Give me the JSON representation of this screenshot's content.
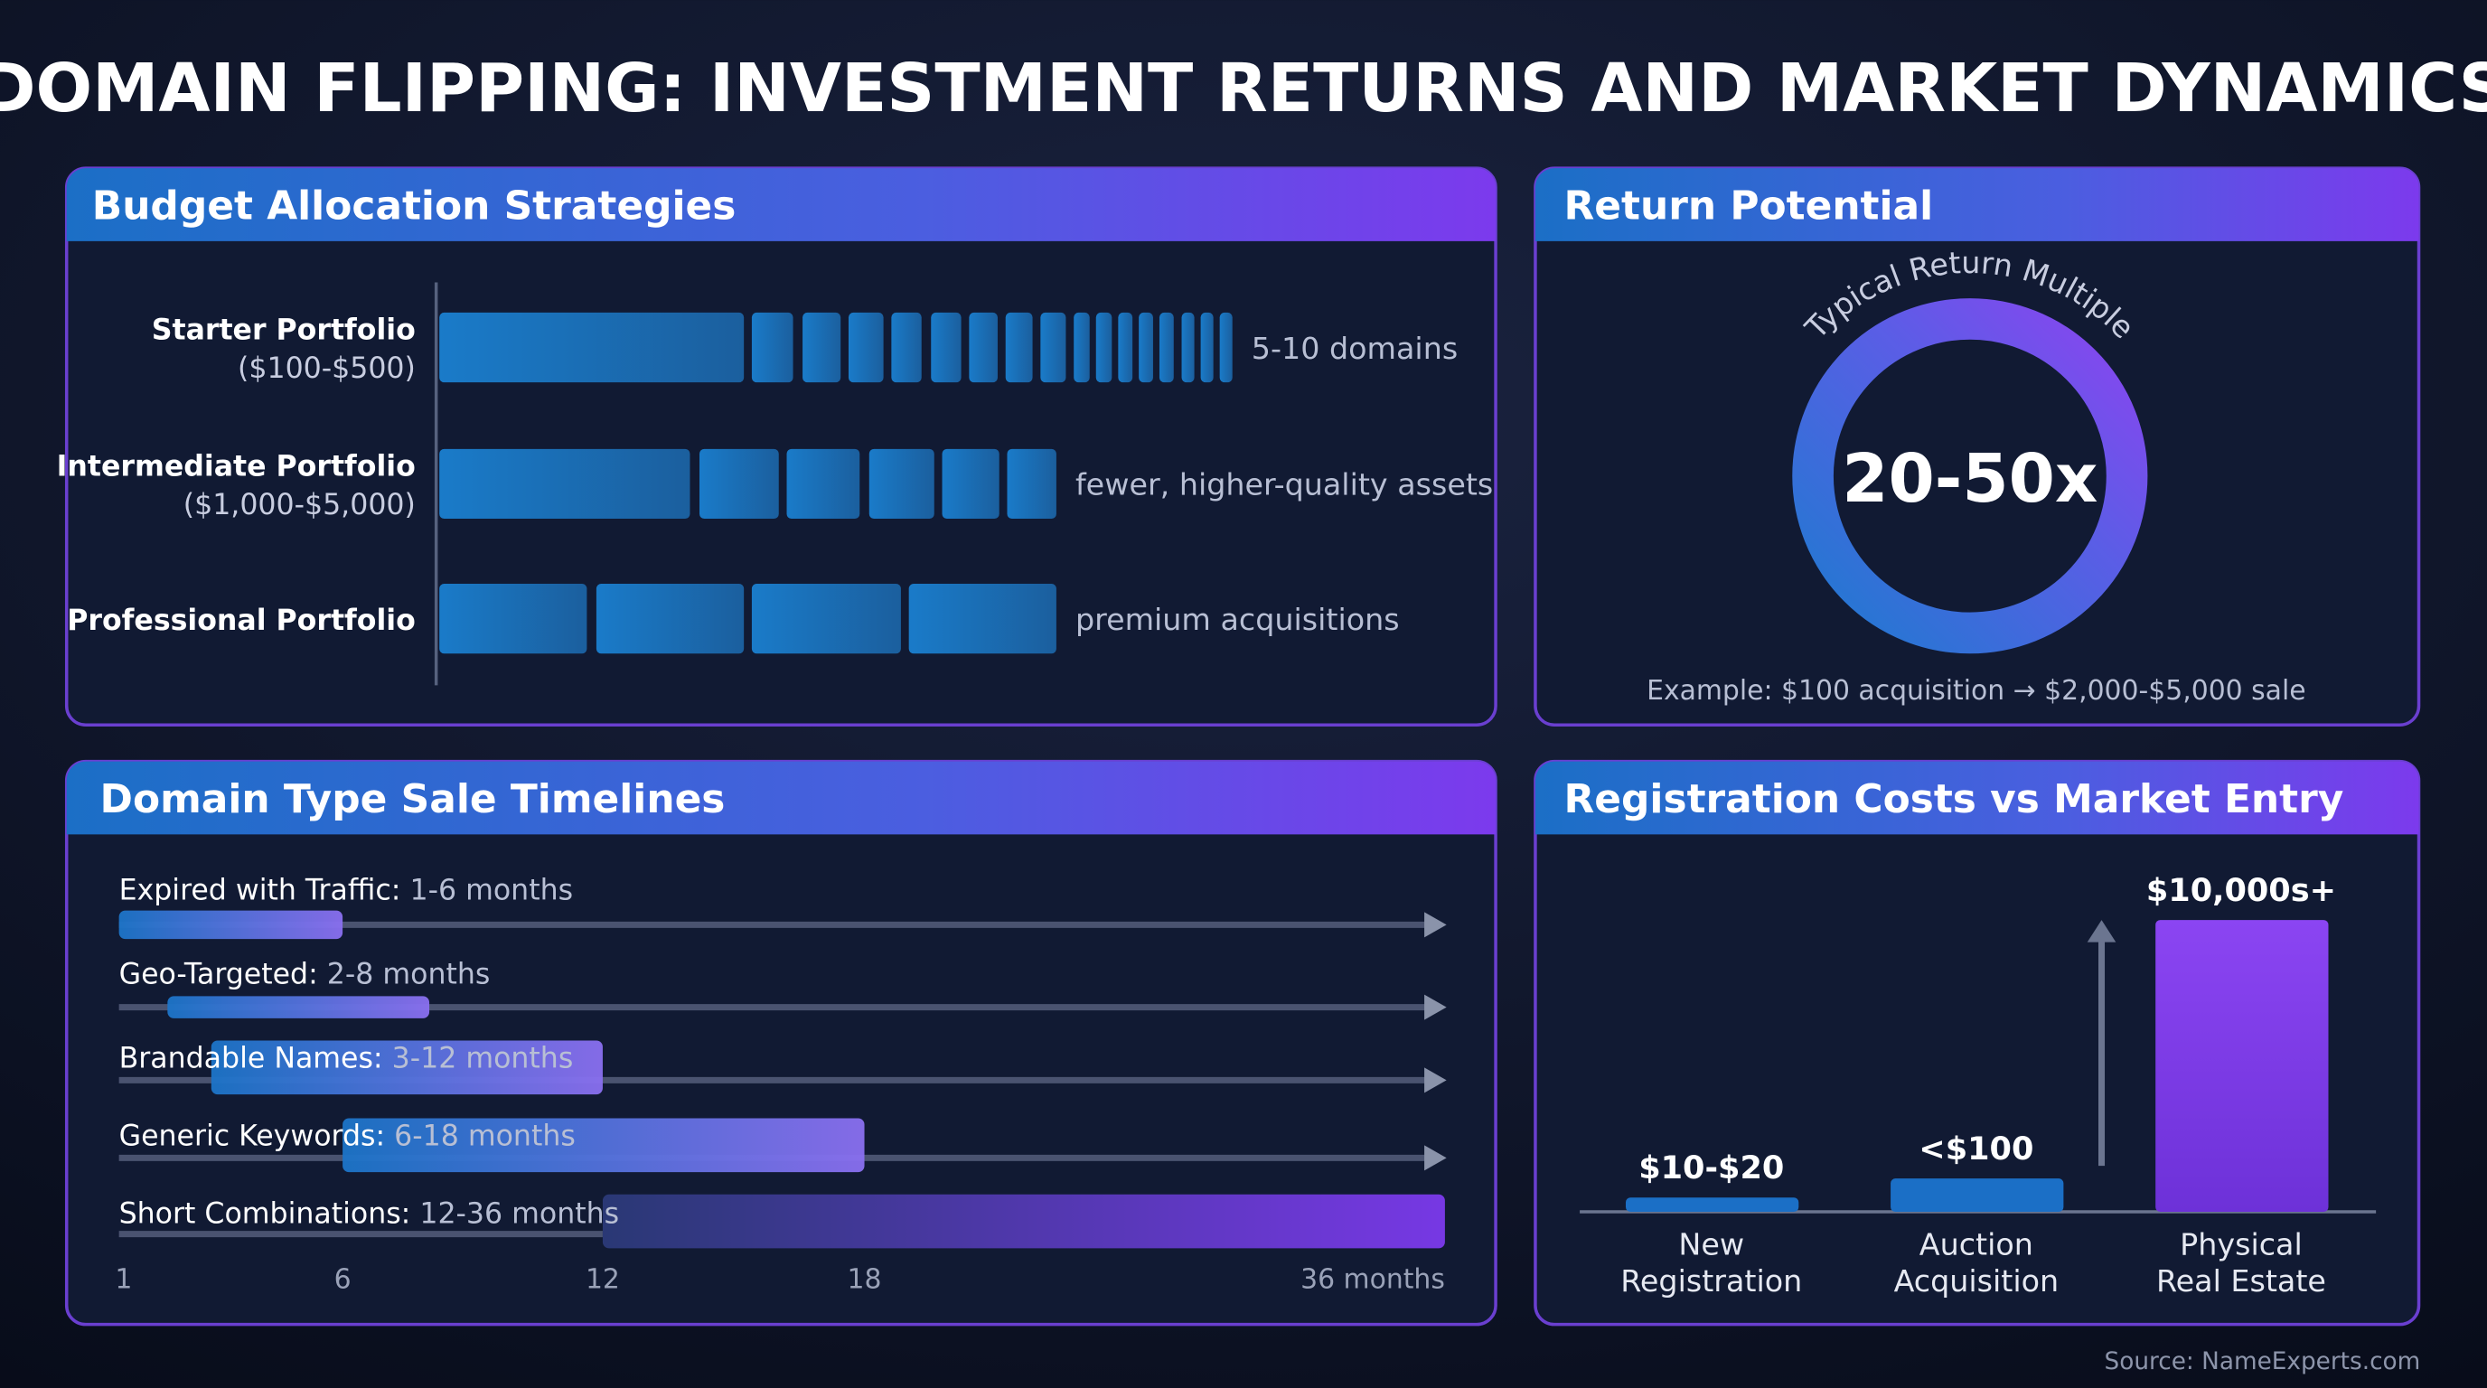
{
  "title": "DOMAIN FLIPPING: INVESTMENT RETURNS AND MARKET DYNAMICS",
  "budget": {
    "title": "Budget Allocation Strategies",
    "rows": [
      {
        "name": "Starter Portfolio",
        "range": "($100-$500)",
        "note": "5-10 domains"
      },
      {
        "name": "Intermediate Portfolio",
        "range": "($1,000-$5,000)",
        "note": "fewer, higher-quality assets"
      },
      {
        "name": "Professional Portfolio",
        "note": "premium acquisitions"
      }
    ]
  },
  "returns": {
    "title": "Return Potential",
    "arc_label": "Typical Return Multiple",
    "value": "20-50x",
    "example": "Example: $100 acquisition → $2,000-$5,000 sale"
  },
  "timelines": {
    "title": "Domain Type Sale Timelines",
    "rows": [
      {
        "name": "Expired with Traffic:",
        "label": "1-6 months",
        "start": 1,
        "end": 6
      },
      {
        "name": "Geo-Targeted:",
        "label": "2-8 months",
        "start": 2,
        "end": 8
      },
      {
        "name": "Brandable Names:",
        "label": "3-12 months",
        "start": 3,
        "end": 12
      },
      {
        "name": "Generic Keywords:",
        "label": "6-18 months",
        "start": 6,
        "end": 18
      },
      {
        "name": "Short Combinations:",
        "label": "12-36 months",
        "start": 12,
        "end": 36
      }
    ],
    "xticks": [
      1,
      6,
      12,
      18,
      {
        "value": 36,
        "label": "36 months"
      }
    ]
  },
  "costs": {
    "title": "Registration Costs vs Market Entry",
    "bars": [
      {
        "label": "$10-$20",
        "name": [
          "New",
          "Registration"
        ]
      },
      {
        "label": "<$100",
        "name": [
          "Auction",
          "Acquisition"
        ]
      },
      {
        "label": "$10,000s+",
        "name": [
          "Physical",
          "Real Estate"
        ]
      }
    ]
  },
  "source": "Source: NameExperts.com"
}
